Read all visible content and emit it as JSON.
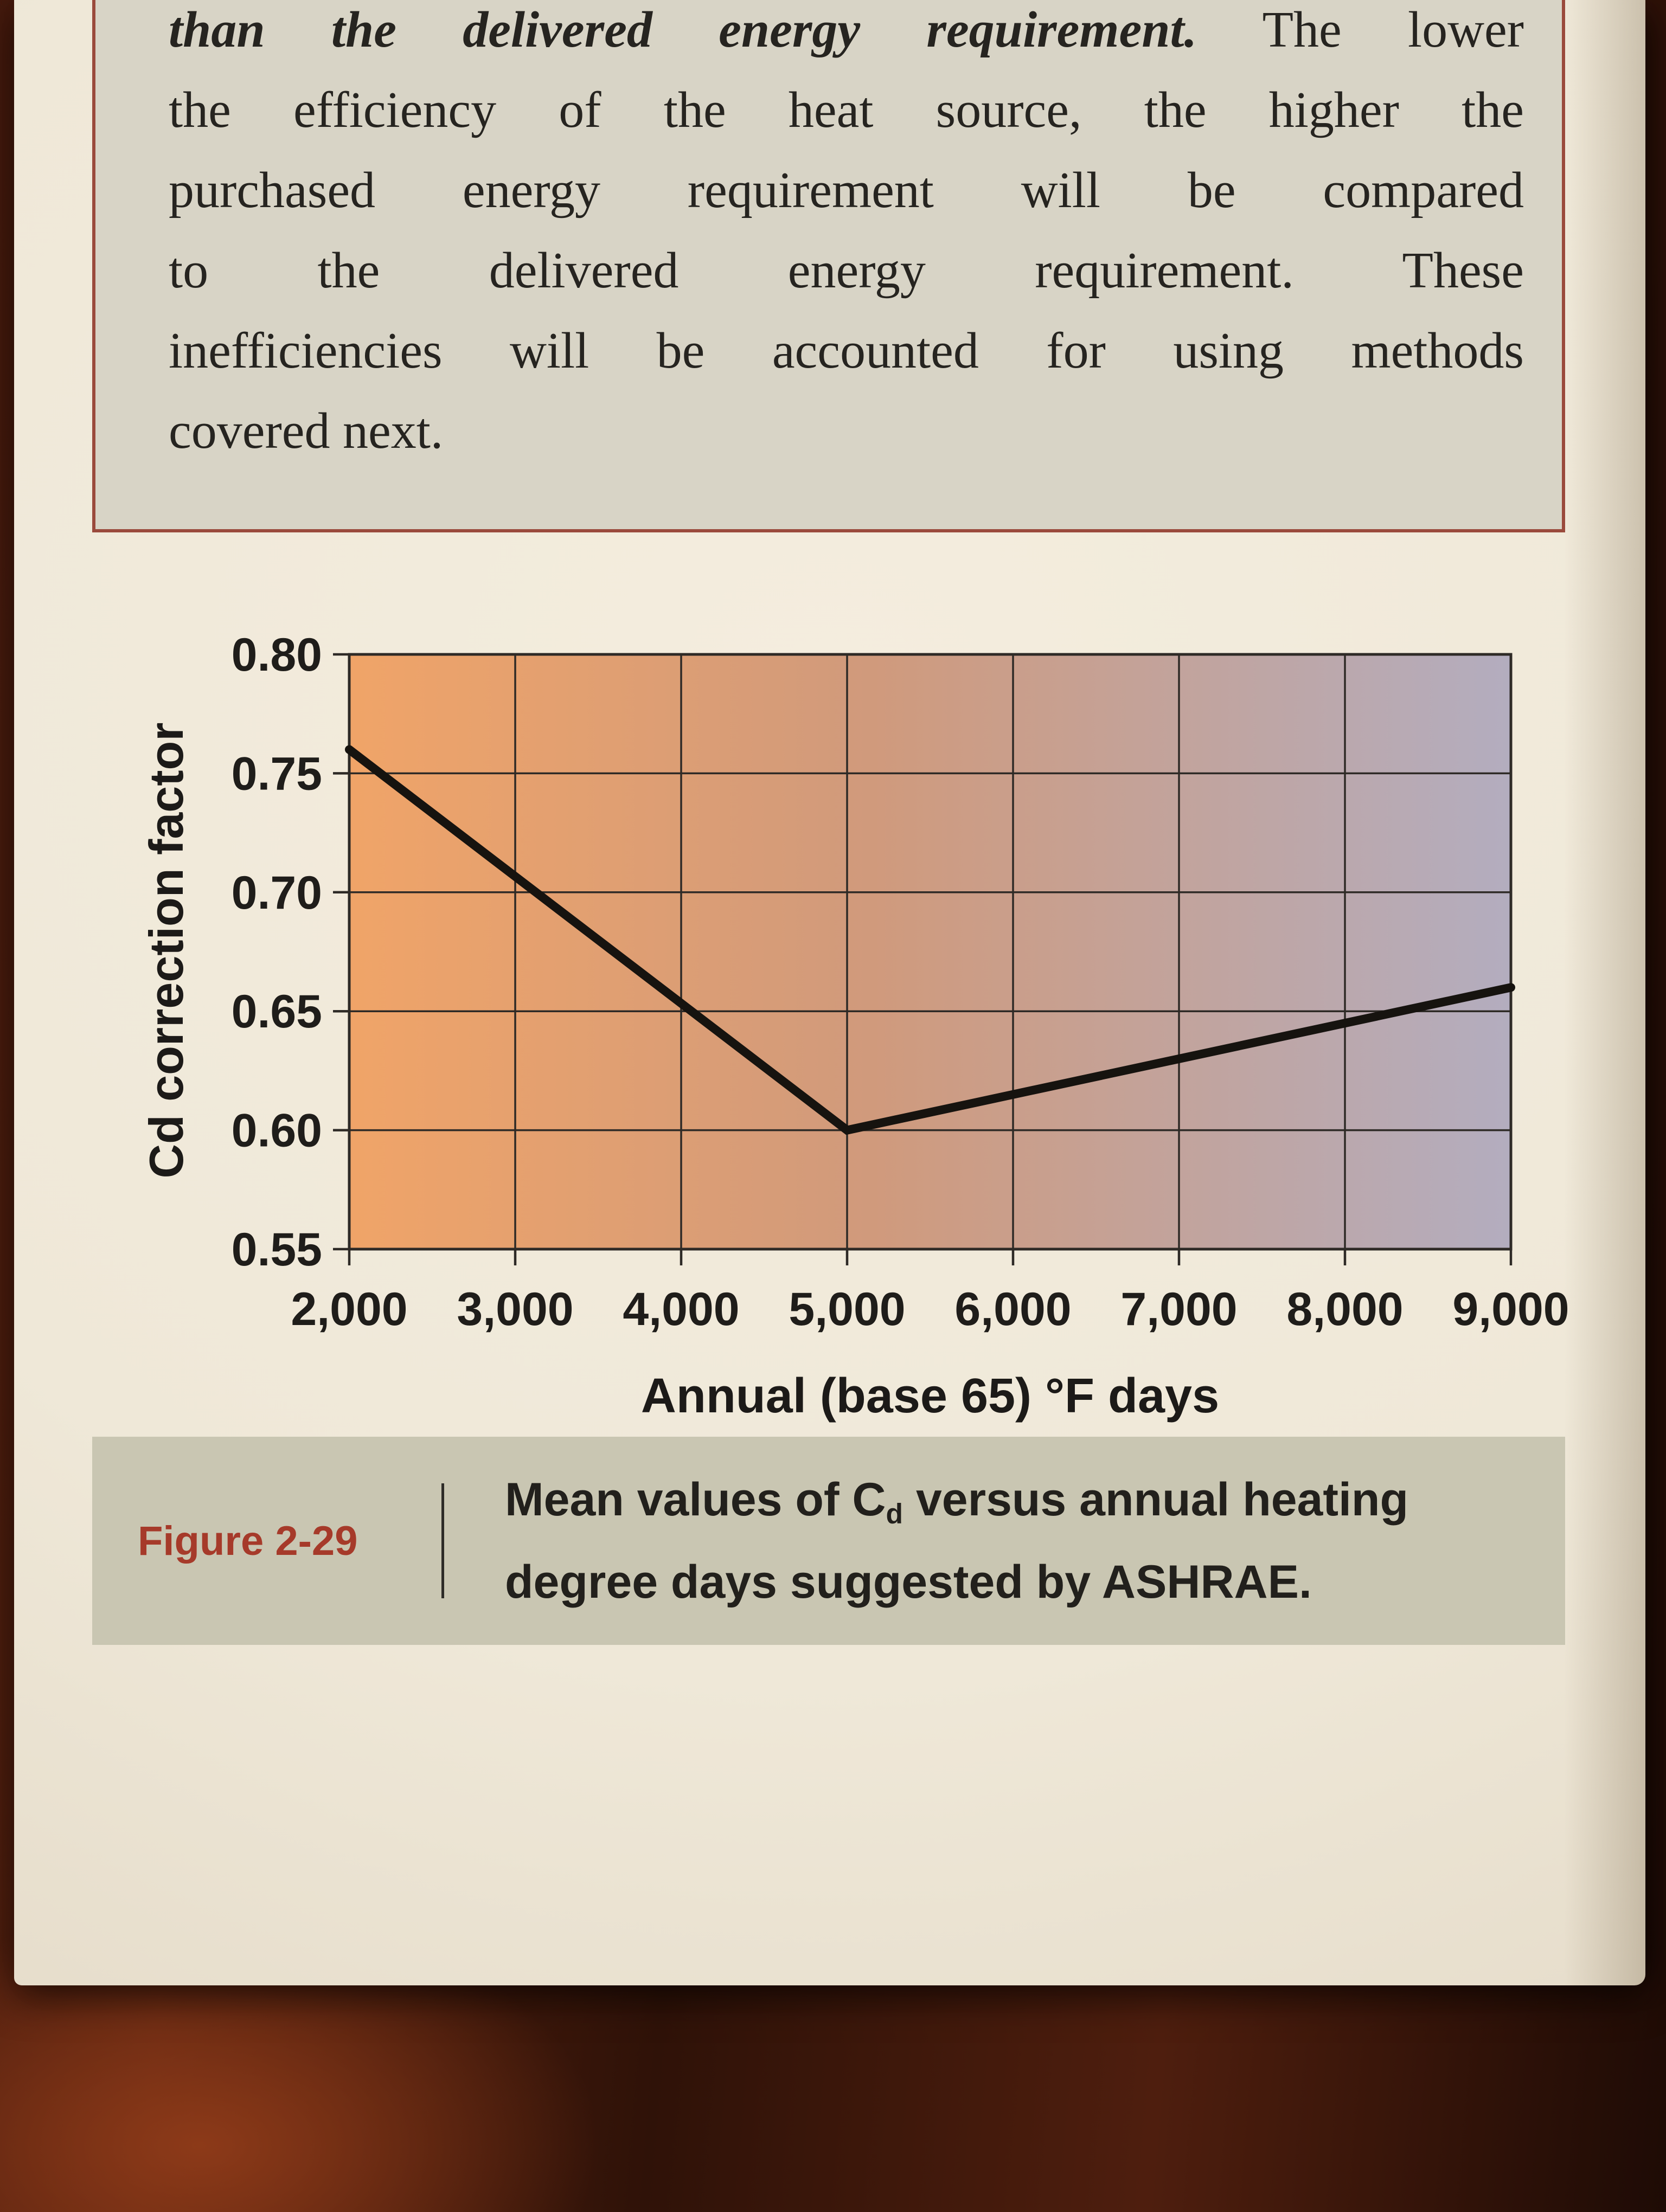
{
  "colors": {
    "callout_border": "#9a4a3c",
    "callout_bg": "#d8d4c6",
    "caption_bg": "#c9c6b2",
    "figure_label": "#a63a2a",
    "text_dark": "#262420",
    "plot_left": "#f0a468",
    "plot_mid": "#d09a7c",
    "plot_right": "#b3adbf",
    "grid": "#2e2a26",
    "curve": "#16130f"
  },
  "page": {
    "callout": {
      "line1_bi": "than the delivered energy requirement.",
      "line1_rest": "The lower",
      "lines": [
        "the efficiency of the heat source, the higher the",
        "purchased energy requirement will be compared",
        "to the delivered energy requirement. These",
        "inefficiencies will be accounted for using methods"
      ],
      "last_line": "covered next."
    },
    "figure": {
      "label": "Figure 2-29",
      "caption_pre": "Mean values of C",
      "caption_sub": "d",
      "caption_post": " versus annual heating degree days suggested by ASHRAE."
    }
  },
  "chart_data": {
    "type": "line",
    "title": "",
    "caption": "Mean values of Cd versus annual heating degree days suggested by ASHRAE.",
    "xlabel": "Annual (base 65) °F days",
    "ylabel": "Cd correction factor",
    "xlim": [
      2000,
      9000
    ],
    "ylim": [
      0.55,
      0.8
    ],
    "x_ticks": [
      2000,
      3000,
      4000,
      5000,
      6000,
      7000,
      8000,
      9000
    ],
    "x_tick_labels": [
      "2,000",
      "3,000",
      "4,000",
      "5,000",
      "6,000",
      "7,000",
      "8,000",
      "9,000"
    ],
    "y_ticks": [
      0.55,
      0.6,
      0.65,
      0.7,
      0.75,
      0.8
    ],
    "y_tick_labels": [
      "0.55",
      "0.60",
      "0.65",
      "0.70",
      "0.75",
      "0.80"
    ],
    "grid": true,
    "legend": "none",
    "series": [
      {
        "name": "Cd mean values",
        "points": [
          [
            2000,
            0.76
          ],
          [
            5000,
            0.6
          ],
          [
            9000,
            0.66
          ]
        ]
      }
    ]
  }
}
